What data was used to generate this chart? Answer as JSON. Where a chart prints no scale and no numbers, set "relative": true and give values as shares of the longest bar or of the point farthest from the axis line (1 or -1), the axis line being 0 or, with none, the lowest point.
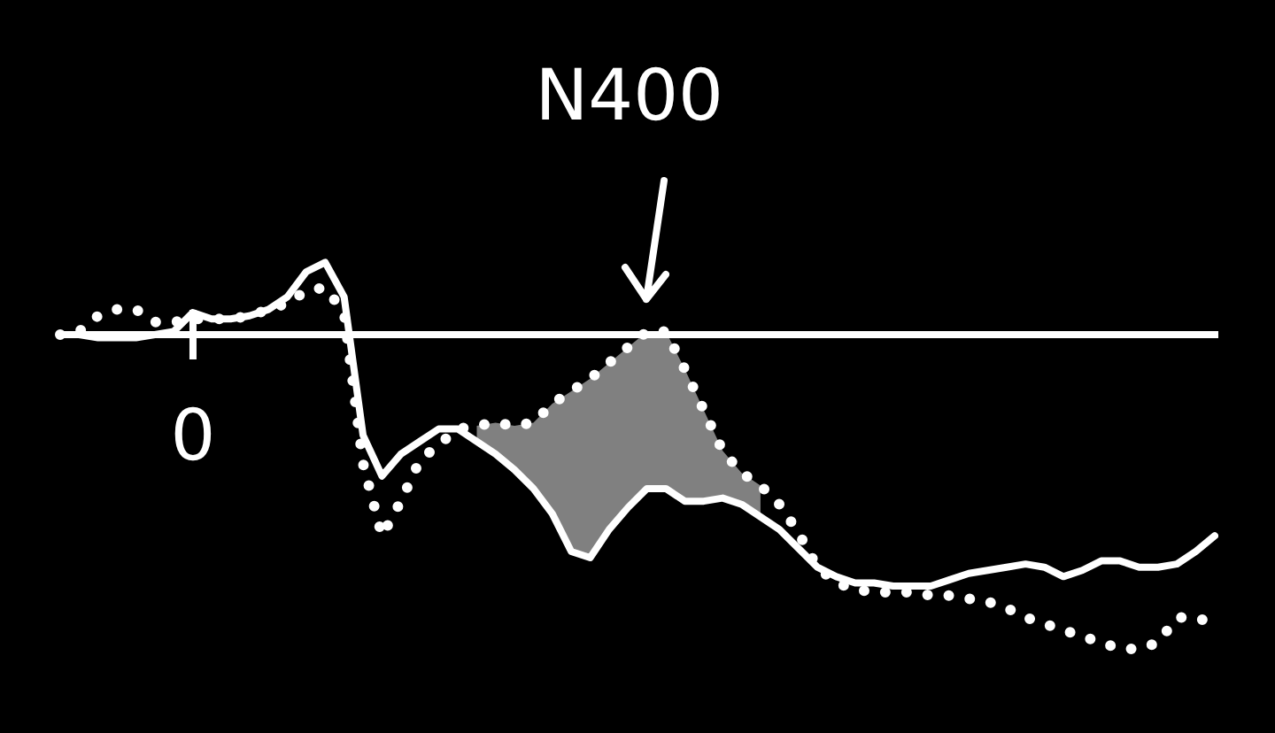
{
  "chart_data": {
    "type": "line",
    "relative": true,
    "legend": false,
    "marker": "none",
    "annotations": [
      "N400",
      "0"
    ],
    "categories": [
      null,
      null,
      null,
      null,
      null,
      null,
      null,
      null,
      null,
      null,
      null,
      null,
      null,
      null,
      null,
      null,
      null,
      null,
      null,
      null,
      null,
      null,
      null,
      null,
      null,
      null,
      null,
      null,
      null,
      null,
      null,
      null,
      null,
      null,
      null,
      null,
      null,
      null,
      null,
      null,
      null,
      null,
      null,
      null,
      null,
      null,
      null,
      null,
      null,
      null,
      null,
      null,
      null,
      null,
      null,
      null,
      null,
      null,
      null,
      null,
      null,
      null
    ],
    "series": [
      {
        "color": "#ffffff",
        "line_style": "solid",
        "values": [
          0,
          0,
          -0.01,
          -0.01,
          -0.01,
          0,
          0.01,
          0.07,
          0.05,
          0.05,
          0.06,
          0.08,
          0.12,
          0.2,
          0.23,
          0.12,
          -0.32,
          -0.45,
          -0.38,
          -0.34,
          -0.3,
          -0.3,
          -0.34,
          -0.38,
          -0.43,
          -0.49,
          -0.57,
          -0.69,
          -0.71,
          -0.62,
          -0.55,
          -0.49,
          -0.49,
          -0.53,
          -0.53,
          -0.52,
          -0.54,
          -0.58,
          -0.62,
          -0.68,
          -0.74,
          -0.77,
          -0.79,
          -0.79,
          -0.8,
          -0.8,
          -0.8,
          -0.78,
          -0.76,
          -0.75,
          -0.74,
          -0.73,
          -0.74,
          -0.77,
          -0.75,
          -0.72,
          -0.72,
          -0.74,
          -0.74,
          -0.73,
          -0.69,
          -0.64
        ]
      },
      {
        "color": "#ffffff",
        "line_style": "dotted",
        "values": [
          0,
          0.01,
          0.06,
          0.08,
          0.08,
          0.04,
          0.04,
          0.05,
          0.05,
          0.05,
          0.06,
          0.08,
          0.1,
          0.14,
          0.15,
          0.07,
          -0.41,
          -0.64,
          -0.53,
          -0.4,
          -0.35,
          -0.3,
          -0.29,
          -0.28,
          -0.29,
          -0.28,
          -0.22,
          -0.18,
          -0.14,
          -0.09,
          -0.04,
          0.01,
          0.01,
          -0.11,
          -0.24,
          -0.37,
          -0.44,
          -0.48,
          -0.54,
          -0.63,
          -0.74,
          -0.79,
          -0.81,
          -0.82,
          -0.82,
          -0.82,
          -0.83,
          -0.83,
          -0.84,
          -0.85,
          -0.87,
          -0.9,
          -0.92,
          -0.94,
          -0.96,
          -0.98,
          -1,
          -1,
          -0.98,
          -0.9,
          -0.9,
          -0.92
        ],
        "lower": [
          null,
          null,
          null,
          null,
          null,
          null,
          null,
          null,
          null,
          null,
          null,
          null,
          null,
          null,
          null,
          null,
          null,
          null,
          null,
          null,
          null,
          null,
          -0.34,
          -0.38,
          -0.43,
          -0.49,
          -0.57,
          -0.69,
          -0.71,
          -0.62,
          -0.55,
          -0.49,
          -0.49,
          -0.53,
          -0.53,
          -0.52,
          -0.54,
          -0.58,
          null,
          null,
          null,
          null,
          null,
          null,
          null,
          null,
          null,
          null,
          null,
          null,
          null,
          null,
          null,
          null,
          null,
          null,
          null,
          null,
          null,
          null,
          null,
          null
        ],
        "upper": [
          null,
          null,
          null,
          null,
          null,
          null,
          null,
          null,
          null,
          null,
          null,
          null,
          null,
          null,
          null,
          null,
          null,
          null,
          null,
          null,
          null,
          null,
          -0.29,
          -0.28,
          -0.29,
          -0.28,
          -0.22,
          -0.18,
          -0.14,
          -0.09,
          -0.04,
          0.01,
          0.01,
          -0.11,
          -0.24,
          -0.37,
          -0.44,
          -0.48,
          null,
          null,
          null,
          null,
          null,
          null,
          null,
          null,
          null,
          null,
          null,
          null,
          null,
          null,
          null,
          null,
          null,
          null,
          null,
          null,
          null,
          null,
          null,
          null
        ]
      }
    ]
  }
}
